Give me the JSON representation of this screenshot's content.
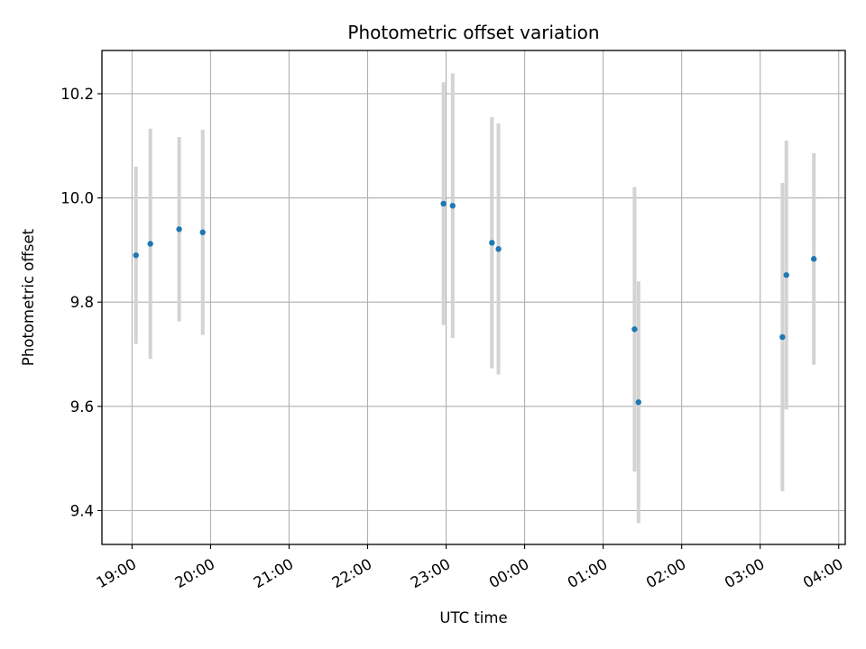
{
  "chart_data": {
    "type": "scatter",
    "title": "Photometric offset variation",
    "xlabel": "UTC time",
    "ylabel": "Photometric offset",
    "x_ticks": [
      "19:00",
      "20:00",
      "21:00",
      "22:00",
      "23:00",
      "00:00",
      "01:00",
      "02:00",
      "03:00",
      "04:00"
    ],
    "x_range": [
      "18:37",
      "04:05"
    ],
    "y_ticks": [
      9.4,
      9.6,
      9.8,
      10.0,
      10.2
    ],
    "ylim": [
      9.335,
      10.283
    ],
    "grid": true,
    "colors": {
      "point": "#1f77b4",
      "errorbar": "#d3d3d3",
      "grid": "#b0b0b0"
    },
    "points": [
      {
        "x": "19:03",
        "y": 9.89,
        "yerr": 0.17
      },
      {
        "x": "19:14",
        "y": 9.912,
        "yerr": 0.221
      },
      {
        "x": "19:36",
        "y": 9.94,
        "yerr": 0.177
      },
      {
        "x": "19:54",
        "y": 9.934,
        "yerr": 0.197
      },
      {
        "x": "22:58",
        "y": 9.989,
        "yerr": 0.233
      },
      {
        "x": "23:05",
        "y": 9.985,
        "yerr": 0.254
      },
      {
        "x": "23:35",
        "y": 9.914,
        "yerr": 0.241
      },
      {
        "x": "23:40",
        "y": 9.902,
        "yerr": 0.241
      },
      {
        "x": "01:24",
        "y": 9.748,
        "yerr": 0.273
      },
      {
        "x": "01:27",
        "y": 9.608,
        "yerr": 0.232
      },
      {
        "x": "03:17",
        "y": 9.733,
        "yerr": 0.296
      },
      {
        "x": "03:20",
        "y": 9.852,
        "yerr": 0.258
      },
      {
        "x": "03:41",
        "y": 9.883,
        "yerr": 0.203
      }
    ]
  }
}
